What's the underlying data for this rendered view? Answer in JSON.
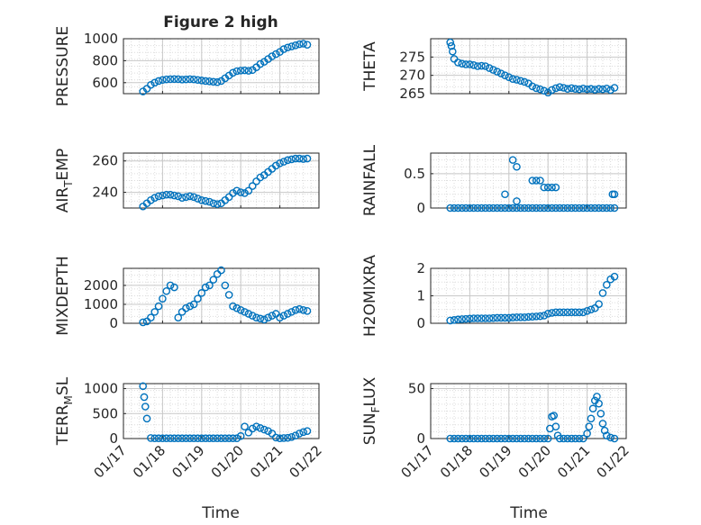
{
  "figure": {
    "title": "Figure 2 high",
    "xlabel": "Time",
    "xticks": [
      "01/17",
      "01/18",
      "01/19",
      "01/20",
      "01/21",
      "01/22"
    ]
  },
  "colors": {
    "marker": "#0072BD",
    "axis": "#262626",
    "grid": "#c8c8c8",
    "minor_grid": "#dcdcdc"
  },
  "chart_data": [
    {
      "type": "scatter",
      "ylabel": "PRESSURE",
      "title": "Figure 2 high",
      "xlim": [
        0,
        5
      ],
      "ylim": [
        500,
        1000
      ],
      "yticks": [
        600,
        800,
        1000
      ],
      "x": [
        0.5,
        0.6,
        0.7,
        0.8,
        0.9,
        1.0,
        1.1,
        1.2,
        1.3,
        1.4,
        1.5,
        1.6,
        1.7,
        1.8,
        1.9,
        2.0,
        2.1,
        2.2,
        2.3,
        2.4,
        2.5,
        2.6,
        2.7,
        2.8,
        2.9,
        3.0,
        3.1,
        3.2,
        3.3,
        3.4,
        3.5,
        3.6,
        3.7,
        3.8,
        3.9,
        4.0,
        4.1,
        4.2,
        4.3,
        4.4,
        4.5,
        4.6,
        4.7
      ],
      "y": [
        520,
        545,
        580,
        600,
        615,
        625,
        630,
        632,
        633,
        632,
        628,
        630,
        632,
        630,
        625,
        620,
        615,
        612,
        608,
        605,
        615,
        640,
        665,
        690,
        705,
        710,
        712,
        708,
        715,
        740,
        770,
        790,
        815,
        840,
        860,
        880,
        905,
        920,
        930,
        940,
        950,
        955,
        945
      ]
    },
    {
      "type": "scatter",
      "ylabel": "THETA",
      "xlim": [
        0,
        5
      ],
      "ylim": [
        265,
        280
      ],
      "yticks": [
        265,
        270,
        275
      ],
      "x": [
        0.5,
        0.53,
        0.56,
        0.6,
        0.7,
        0.8,
        0.9,
        1.0,
        1.1,
        1.2,
        1.3,
        1.4,
        1.5,
        1.6,
        1.7,
        1.8,
        1.9,
        2.0,
        2.1,
        2.2,
        2.3,
        2.4,
        2.5,
        2.6,
        2.7,
        2.8,
        2.9,
        3.0,
        3.1,
        3.2,
        3.3,
        3.4,
        3.5,
        3.6,
        3.7,
        3.8,
        3.9,
        4.0,
        4.1,
        4.2,
        4.3,
        4.4,
        4.5,
        4.6,
        4.7
      ],
      "y": [
        279,
        278,
        276.5,
        274.5,
        273.5,
        273.2,
        273,
        273,
        272.8,
        272.5,
        272.6,
        272.5,
        272,
        271.5,
        271,
        270.5,
        270,
        269.5,
        269,
        268.8,
        268.5,
        268.2,
        267.8,
        267,
        266.5,
        266.2,
        265.8,
        265.3,
        266,
        266.5,
        266.8,
        266.6,
        266.3,
        266.5,
        266.3,
        266.2,
        266.4,
        266.2,
        266.3,
        266.1,
        266.3,
        266.2,
        266.4,
        266,
        266.6
      ]
    },
    {
      "type": "scatter",
      "ylabel": "AIR_TEMP",
      "xlim": [
        0,
        5
      ],
      "ylim": [
        230,
        265
      ],
      "yticks": [
        240,
        260
      ],
      "x": [
        0.5,
        0.6,
        0.7,
        0.8,
        0.9,
        1.0,
        1.1,
        1.2,
        1.3,
        1.4,
        1.5,
        1.6,
        1.7,
        1.8,
        1.9,
        2.0,
        2.1,
        2.2,
        2.3,
        2.4,
        2.5,
        2.6,
        2.7,
        2.8,
        2.9,
        3.0,
        3.1,
        3.2,
        3.3,
        3.4,
        3.5,
        3.6,
        3.7,
        3.8,
        3.9,
        4.0,
        4.1,
        4.2,
        4.3,
        4.4,
        4.5,
        4.6,
        4.7
      ],
      "y": [
        231,
        233,
        235,
        236.5,
        237.5,
        238,
        238.5,
        238.5,
        238,
        237.5,
        236.5,
        237,
        237.5,
        237,
        236,
        235,
        234.5,
        234,
        233,
        232.5,
        233,
        235,
        237,
        239.5,
        241,
        240,
        239.5,
        241,
        244,
        247,
        249.5,
        251,
        253,
        255,
        257,
        258.5,
        259.5,
        260.5,
        261,
        261.5,
        261.5,
        261.2,
        261.5
      ]
    },
    {
      "type": "scatter",
      "ylabel": "RAINFALL",
      "xlim": [
        0,
        5
      ],
      "ylim": [
        0,
        0.8
      ],
      "yticks": [
        0,
        0.5
      ],
      "x": [
        0.5,
        0.6,
        0.7,
        0.8,
        0.9,
        1.0,
        1.1,
        1.2,
        1.3,
        1.4,
        1.5,
        1.6,
        1.7,
        1.8,
        1.9,
        2.0,
        2.1,
        2.2,
        2.3,
        2.4,
        2.5,
        2.6,
        2.7,
        2.8,
        2.9,
        3.0,
        3.1,
        3.2,
        3.3,
        3.4,
        3.5,
        3.6,
        3.7,
        3.8,
        3.9,
        4.0,
        4.1,
        4.2,
        4.3,
        4.4,
        4.5,
        4.6,
        4.7,
        1.9,
        2.1,
        2.2,
        2.6,
        2.7,
        2.8,
        2.9,
        3.0,
        3.1,
        2.2,
        3.2,
        4.65,
        4.7
      ],
      "y": [
        0,
        0,
        0,
        0,
        0,
        0,
        0,
        0,
        0,
        0,
        0,
        0,
        0,
        0,
        0,
        0,
        0,
        0,
        0,
        0,
        0,
        0,
        0,
        0,
        0,
        0,
        0,
        0,
        0,
        0,
        0,
        0,
        0,
        0,
        0,
        0,
        0,
        0,
        0,
        0,
        0,
        0,
        0,
        0.2,
        0.7,
        0.6,
        0.4,
        0.4,
        0.4,
        0.3,
        0.3,
        0.3,
        0.1,
        0.3,
        0.2,
        0.2
      ]
    },
    {
      "type": "scatter",
      "ylabel": "MIXDEPTH",
      "xlim": [
        0,
        5
      ],
      "ylim": [
        0,
        2900
      ],
      "yticks": [
        0,
        1000,
        2000
      ],
      "x": [
        0.5,
        0.6,
        0.7,
        0.8,
        0.9,
        1.0,
        1.1,
        1.2,
        1.3,
        1.4,
        1.5,
        1.6,
        1.7,
        1.8,
        1.9,
        2.0,
        2.1,
        2.2,
        2.3,
        2.4,
        2.5,
        2.6,
        2.7,
        2.8,
        2.9,
        3.0,
        3.1,
        3.2,
        3.3,
        3.4,
        3.5,
        3.6,
        3.7,
        3.8,
        3.9,
        4.0,
        4.1,
        4.2,
        4.3,
        4.4,
        4.5,
        4.6,
        4.7
      ],
      "y": [
        50,
        100,
        300,
        600,
        900,
        1300,
        1700,
        2000,
        1900,
        300,
        600,
        800,
        900,
        1000,
        1300,
        1600,
        1900,
        2000,
        2300,
        2600,
        2800,
        2000,
        1500,
        900,
        800,
        700,
        600,
        500,
        400,
        300,
        250,
        200,
        300,
        400,
        500,
        300,
        400,
        500,
        600,
        700,
        750,
        700,
        650
      ]
    },
    {
      "type": "scatter",
      "ylabel": "H2OMIXRA",
      "xlim": [
        0,
        5
      ],
      "ylim": [
        0,
        2
      ],
      "yticks": [
        0,
        1,
        2
      ],
      "x": [
        0.5,
        0.6,
        0.7,
        0.8,
        0.9,
        1.0,
        1.1,
        1.2,
        1.3,
        1.4,
        1.5,
        1.6,
        1.7,
        1.8,
        1.9,
        2.0,
        2.1,
        2.2,
        2.3,
        2.4,
        2.5,
        2.6,
        2.7,
        2.8,
        2.9,
        3.0,
        3.1,
        3.2,
        3.3,
        3.4,
        3.5,
        3.6,
        3.7,
        3.8,
        3.9,
        4.0,
        4.1,
        4.2,
        4.3,
        4.4,
        4.5,
        4.6,
        4.7
      ],
      "y": [
        0.1,
        0.12,
        0.14,
        0.15,
        0.16,
        0.17,
        0.18,
        0.18,
        0.18,
        0.18,
        0.18,
        0.19,
        0.2,
        0.2,
        0.2,
        0.2,
        0.21,
        0.22,
        0.22,
        0.22,
        0.23,
        0.24,
        0.25,
        0.26,
        0.28,
        0.35,
        0.38,
        0.4,
        0.4,
        0.4,
        0.4,
        0.4,
        0.4,
        0.4,
        0.4,
        0.45,
        0.5,
        0.55,
        0.7,
        1.1,
        1.4,
        1.6,
        1.7
      ]
    },
    {
      "type": "scatter",
      "ylabel": "TERR_MSL",
      "xlim": [
        0,
        5
      ],
      "ylim": [
        0,
        1100
      ],
      "yticks": [
        0,
        500,
        1000
      ],
      "x": [
        0.5,
        0.53,
        0.56,
        0.6,
        0.7,
        0.8,
        0.9,
        1.0,
        1.1,
        1.2,
        1.3,
        1.4,
        1.5,
        1.6,
        1.7,
        1.8,
        1.9,
        2.0,
        2.1,
        2.2,
        2.3,
        2.4,
        2.5,
        2.6,
        2.7,
        2.8,
        2.9,
        3.0,
        3.1,
        3.2,
        3.3,
        3.4,
        3.5,
        3.6,
        3.7,
        3.8,
        3.9,
        4.0,
        4.1,
        4.2,
        4.3,
        4.4,
        4.5,
        4.6,
        4.7
      ],
      "y": [
        1050,
        830,
        640,
        400,
        10,
        5,
        5,
        5,
        5,
        5,
        5,
        5,
        5,
        5,
        5,
        5,
        5,
        5,
        5,
        5,
        5,
        5,
        5,
        5,
        5,
        5,
        5,
        50,
        240,
        120,
        200,
        240,
        210,
        180,
        150,
        100,
        20,
        5,
        10,
        15,
        30,
        60,
        100,
        130,
        150
      ]
    },
    {
      "type": "scatter",
      "ylabel": "SUN_FLUX",
      "xlim": [
        0,
        5
      ],
      "ylim": [
        0,
        55
      ],
      "yticks": [
        0,
        50
      ],
      "x": [
        0.5,
        0.6,
        0.7,
        0.8,
        0.9,
        1.0,
        1.1,
        1.2,
        1.3,
        1.4,
        1.5,
        1.6,
        1.7,
        1.8,
        1.9,
        2.0,
        2.1,
        2.2,
        2.3,
        2.4,
        2.5,
        2.6,
        2.7,
        2.8,
        2.9,
        3.0,
        3.05,
        3.1,
        3.15,
        3.2,
        3.25,
        3.3,
        3.4,
        3.5,
        3.6,
        3.7,
        3.8,
        3.9,
        4.0,
        4.05,
        4.1,
        4.15,
        4.2,
        4.25,
        4.3,
        4.35,
        4.4,
        4.45,
        4.5,
        4.6,
        4.7
      ],
      "y": [
        0,
        0,
        0,
        0,
        0,
        0,
        0,
        0,
        0,
        0,
        0,
        0,
        0,
        0,
        0,
        0,
        0,
        0,
        0,
        0,
        0,
        0,
        0,
        0,
        0,
        0,
        10,
        22,
        23,
        12,
        3,
        0,
        0,
        0,
        0,
        0,
        0,
        0,
        5,
        12,
        20,
        30,
        38,
        42,
        35,
        25,
        15,
        8,
        3,
        1,
        0
      ]
    }
  ]
}
